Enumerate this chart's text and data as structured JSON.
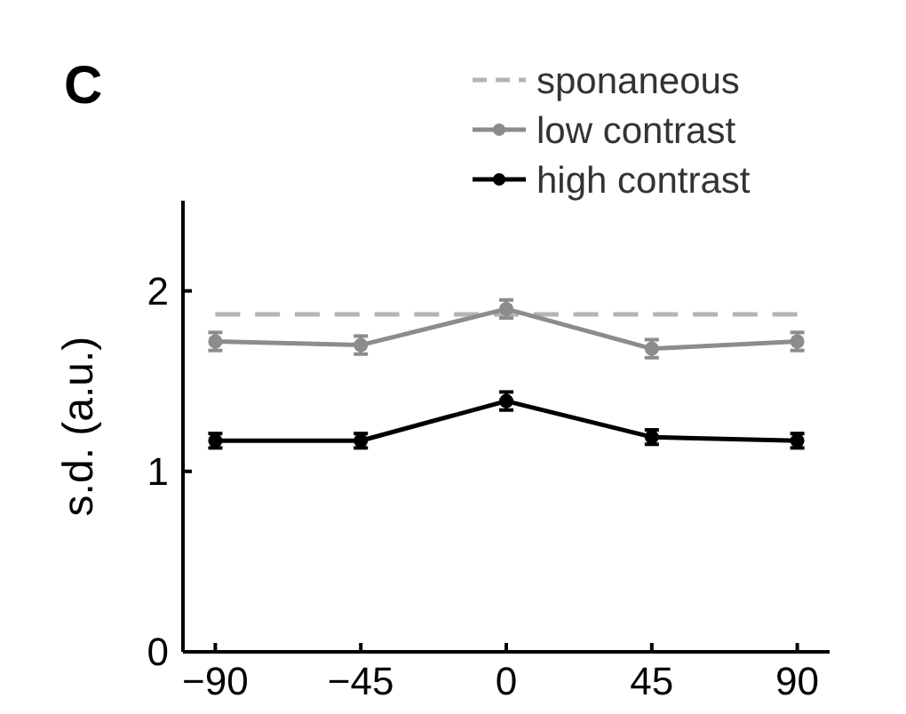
{
  "chart_data": {
    "type": "line",
    "title": "C",
    "ylabel": "s.d. (a.u.)",
    "x": [
      -90,
      -45,
      0,
      45,
      90
    ],
    "xlim": [
      -100,
      100
    ],
    "xticks": [
      -90,
      -45,
      0,
      45,
      90
    ],
    "ylim": [
      0,
      2.5
    ],
    "yticks": [
      0,
      1,
      2
    ],
    "legend": "top right",
    "series": [
      {
        "name": "sponaneous",
        "color": "#b4b4b4",
        "x": [
          -90,
          90
        ],
        "values": [
          1.87,
          1.87
        ],
        "line_style": "dashed",
        "marker": "none"
      },
      {
        "name": "low contrast",
        "color": "#8c8c8c",
        "values": [
          1.72,
          1.7,
          1.9,
          1.68,
          1.72
        ],
        "errors": [
          0.05,
          0.05,
          0.05,
          0.05,
          0.05
        ],
        "marker": "circle"
      },
      {
        "name": "high contrast",
        "color": "#000000",
        "values": [
          1.17,
          1.17,
          1.39,
          1.19,
          1.17
        ],
        "errors": [
          0.04,
          0.04,
          0.05,
          0.04,
          0.04
        ],
        "marker": "circle"
      }
    ]
  }
}
